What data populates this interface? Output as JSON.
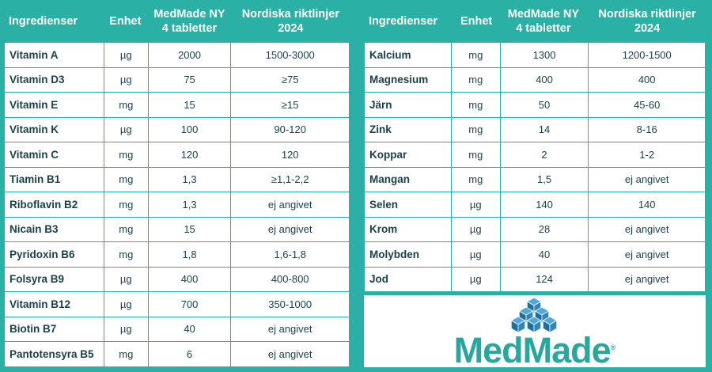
{
  "colors": {
    "background": "#2bb0a6",
    "text": "#1a3f4a",
    "logo": "#2aa79d",
    "cube_dark": "#1e6f9e",
    "cube_light": "#4fa9dc"
  },
  "headers": {
    "ingredients": "Ingredienser",
    "unit": "Enhet",
    "product_line1": "MedMade NY",
    "product_line2": "4 tabletter",
    "reference_line1": "Nordiska riktlinjer",
    "reference_line2": "2024"
  },
  "left_rows": [
    {
      "name": "Vitamin A",
      "unit": "µg",
      "amount": "2000",
      "reference": "1500-3000"
    },
    {
      "name": "Vitamin D3",
      "unit": "µg",
      "amount": "75",
      "reference": "≥75"
    },
    {
      "name": "Vitamin E",
      "unit": "mg",
      "amount": "15",
      "reference": "≥15"
    },
    {
      "name": "Vitamin K",
      "unit": "µg",
      "amount": "100",
      "reference": "90-120"
    },
    {
      "name": "Vitamin C",
      "unit": "mg",
      "amount": "120",
      "reference": "120"
    },
    {
      "name": "Tiamin B1",
      "unit": "mg",
      "amount": "1,3",
      "reference": "≥1,1-2,2"
    },
    {
      "name": "Riboflavin B2",
      "unit": "mg",
      "amount": "1,3",
      "reference": "ej angivet"
    },
    {
      "name": "Nicain B3",
      "unit": "mg",
      "amount": "15",
      "reference": "ej angivet"
    },
    {
      "name": "Pyridoxin B6",
      "unit": "mg",
      "amount": "1,8",
      "reference": "1,6-1,8"
    },
    {
      "name": "Folsyra B9",
      "unit": "µg",
      "amount": "400",
      "reference": "400-800"
    },
    {
      "name": "Vitamin B12",
      "unit": "µg",
      "amount": "700",
      "reference": "350-1000"
    },
    {
      "name": "Biotin B7",
      "unit": "µg",
      "amount": "40",
      "reference": "ej angivet"
    },
    {
      "name": "Pantotensyra B5",
      "unit": "mg",
      "amount": "6",
      "reference": "ej angivet"
    }
  ],
  "right_rows": [
    {
      "name": "Kalcium",
      "unit": "mg",
      "amount": "1300",
      "reference": "1200-1500"
    },
    {
      "name": "Magnesium",
      "unit": "mg",
      "amount": "400",
      "reference": "400"
    },
    {
      "name": "Järn",
      "unit": "mg",
      "amount": "50",
      "reference": "45-60"
    },
    {
      "name": "Zink",
      "unit": "mg",
      "amount": "14",
      "reference": "8-16"
    },
    {
      "name": "Koppar",
      "unit": "mg",
      "amount": "2",
      "reference": "1-2"
    },
    {
      "name": "Mangan",
      "unit": "mg",
      "amount": "1,5",
      "reference": "ej angivet"
    },
    {
      "name": "Selen",
      "unit": "µg",
      "amount": "140",
      "reference": "140"
    },
    {
      "name": "Krom",
      "unit": "µg",
      "amount": "28",
      "reference": "ej angivet"
    },
    {
      "name": "Molybden",
      "unit": "µg",
      "amount": "40",
      "reference": "ej angivet"
    },
    {
      "name": "Jod",
      "unit": "µg",
      "amount": "124",
      "reference": "ej angivet"
    }
  ],
  "logo": {
    "text": "MedMade",
    "mark": "®",
    "icon": "stacked-cubes-icon"
  }
}
